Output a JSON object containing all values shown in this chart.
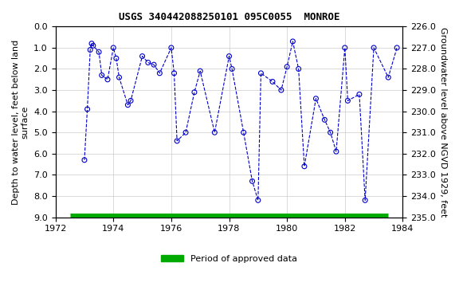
{
  "title": "USGS 340442088250101 095C0055  MONROE",
  "xlabel_left": "Depth to water level, feet below land\nsurface",
  "xlabel_right": "Groundwater level above NGVD 1929, feet",
  "ylim_left": [
    0.0,
    9.0
  ],
  "ylim_right": [
    226.0,
    235.0
  ],
  "xlim": [
    1972,
    1984
  ],
  "yticks_left": [
    0.0,
    1.0,
    2.0,
    3.0,
    4.0,
    5.0,
    6.0,
    7.0,
    8.0,
    9.0
  ],
  "yticks_right": [
    226.0,
    227.0,
    228.0,
    229.0,
    230.0,
    231.0,
    232.0,
    233.0,
    234.0,
    235.0
  ],
  "xticks": [
    1972,
    1974,
    1976,
    1978,
    1980,
    1982,
    1984
  ],
  "legend_label": "Period of approved data",
  "legend_color": "#00aa00",
  "line_color": "#0000cc",
  "marker_color": "#0000cc",
  "bg_color": "#ffffff",
  "plot_bg_color": "#ffffff",
  "grid_color": "#cccccc",
  "approved_bar_y": 9.0,
  "approved_bar_xstart": 1972.5,
  "approved_bar_xend": 1983.5,
  "data_x": [
    1973.0,
    1973.1,
    1973.2,
    1973.25,
    1973.3,
    1973.5,
    1973.6,
    1973.8,
    1974.0,
    1974.1,
    1974.2,
    1974.5,
    1974.6,
    1975.0,
    1975.2,
    1975.4,
    1975.6,
    1976.0,
    1976.1,
    1976.2,
    1976.5,
    1976.8,
    1977.0,
    1977.5,
    1978.0,
    1978.1,
    1978.5,
    1978.8,
    1979.0,
    1979.1,
    1979.5,
    1979.8,
    1980.0,
    1980.2,
    1980.4,
    1980.6,
    1981.0,
    1981.3,
    1981.5,
    1981.7,
    1982.0,
    1982.1,
    1982.5,
    1982.7,
    1983.0,
    1983.5,
    1983.8
  ],
  "data_y": [
    6.3,
    3.9,
    1.1,
    0.8,
    0.9,
    1.2,
    2.3,
    2.5,
    1.0,
    1.5,
    2.4,
    3.7,
    3.5,
    1.4,
    1.7,
    1.8,
    2.2,
    1.0,
    2.2,
    5.4,
    5.0,
    3.1,
    2.1,
    5.0,
    1.4,
    2.0,
    5.0,
    7.3,
    8.2,
    2.2,
    2.6,
    3.0,
    1.9,
    0.7,
    2.0,
    6.6,
    3.4,
    4.4,
    5.0,
    5.9,
    1.0,
    3.5,
    3.2,
    8.2,
    1.0,
    2.4,
    1.0
  ]
}
